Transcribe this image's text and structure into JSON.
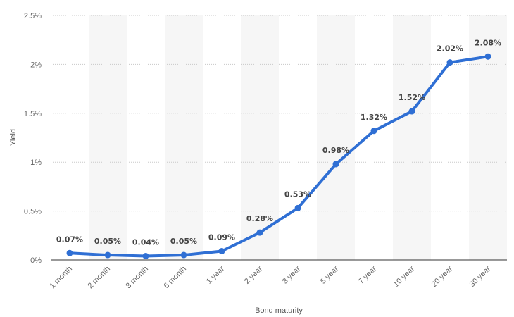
{
  "chart_data": {
    "type": "line",
    "xlabel": "Bond maturity",
    "ylabel": "Yield",
    "categories": [
      "1 month",
      "2 month",
      "3 month",
      "6 month",
      "1 year",
      "2 year",
      "3 year",
      "5 year",
      "7 year",
      "10 year",
      "20 year",
      "30 year"
    ],
    "series": [
      {
        "values": [
          0.07,
          0.05,
          0.04,
          0.05,
          0.09,
          0.28,
          0.53,
          0.98,
          1.32,
          1.52,
          2.02,
          2.08
        ],
        "data_labels": [
          "0.07%",
          "0.05%",
          "0.04%",
          "0.05%",
          "0.09%",
          "0.28%",
          "0.53%",
          "0.98%",
          "1.32%",
          "1.52%",
          "2.02%",
          "2.08%"
        ]
      }
    ],
    "ylim": [
      0,
      2.5
    ],
    "yticks": [
      0,
      0.5,
      1,
      1.5,
      2,
      2.5
    ],
    "ytick_labels": [
      "0%",
      "0.5%",
      "1%",
      "1.5%",
      "2%",
      "2.5%"
    ],
    "grid": "horizontal dotted",
    "alternating_column_bands": true,
    "colors": {
      "line": "#2f6fd4",
      "band": "#f6f6f6",
      "grid": "#c8c8c8",
      "axis": "#333333"
    }
  }
}
